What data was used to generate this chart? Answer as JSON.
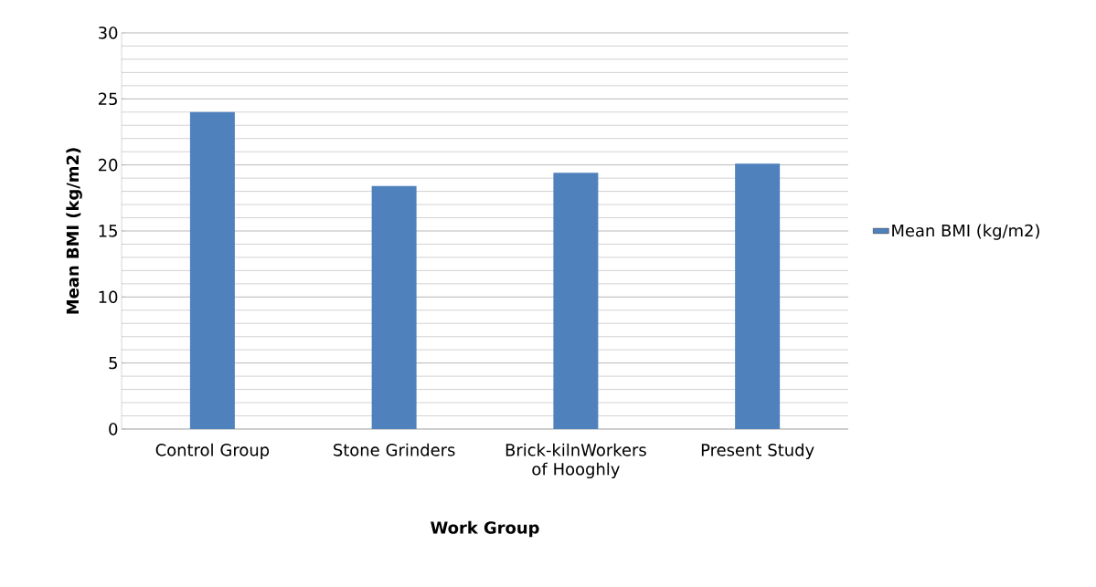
{
  "chart_data": {
    "type": "bar",
    "categories": [
      "Control Group",
      "Stone Grinders",
      "Brick-kilnWorkers of Hooghly",
      "Present Study"
    ],
    "series": [
      {
        "name": "Mean BMI (kg/m2)",
        "color": "#4f81bd",
        "values": [
          24.0,
          18.4,
          19.4,
          20.1
        ]
      }
    ],
    "xlabel": "Work Group",
    "ylabel": "Mean BMI (kg/m2)",
    "ylim": [
      0,
      30
    ],
    "yticks": [
      0,
      5,
      10,
      15,
      20,
      25,
      30
    ],
    "grid": "y",
    "legend": "right"
  }
}
